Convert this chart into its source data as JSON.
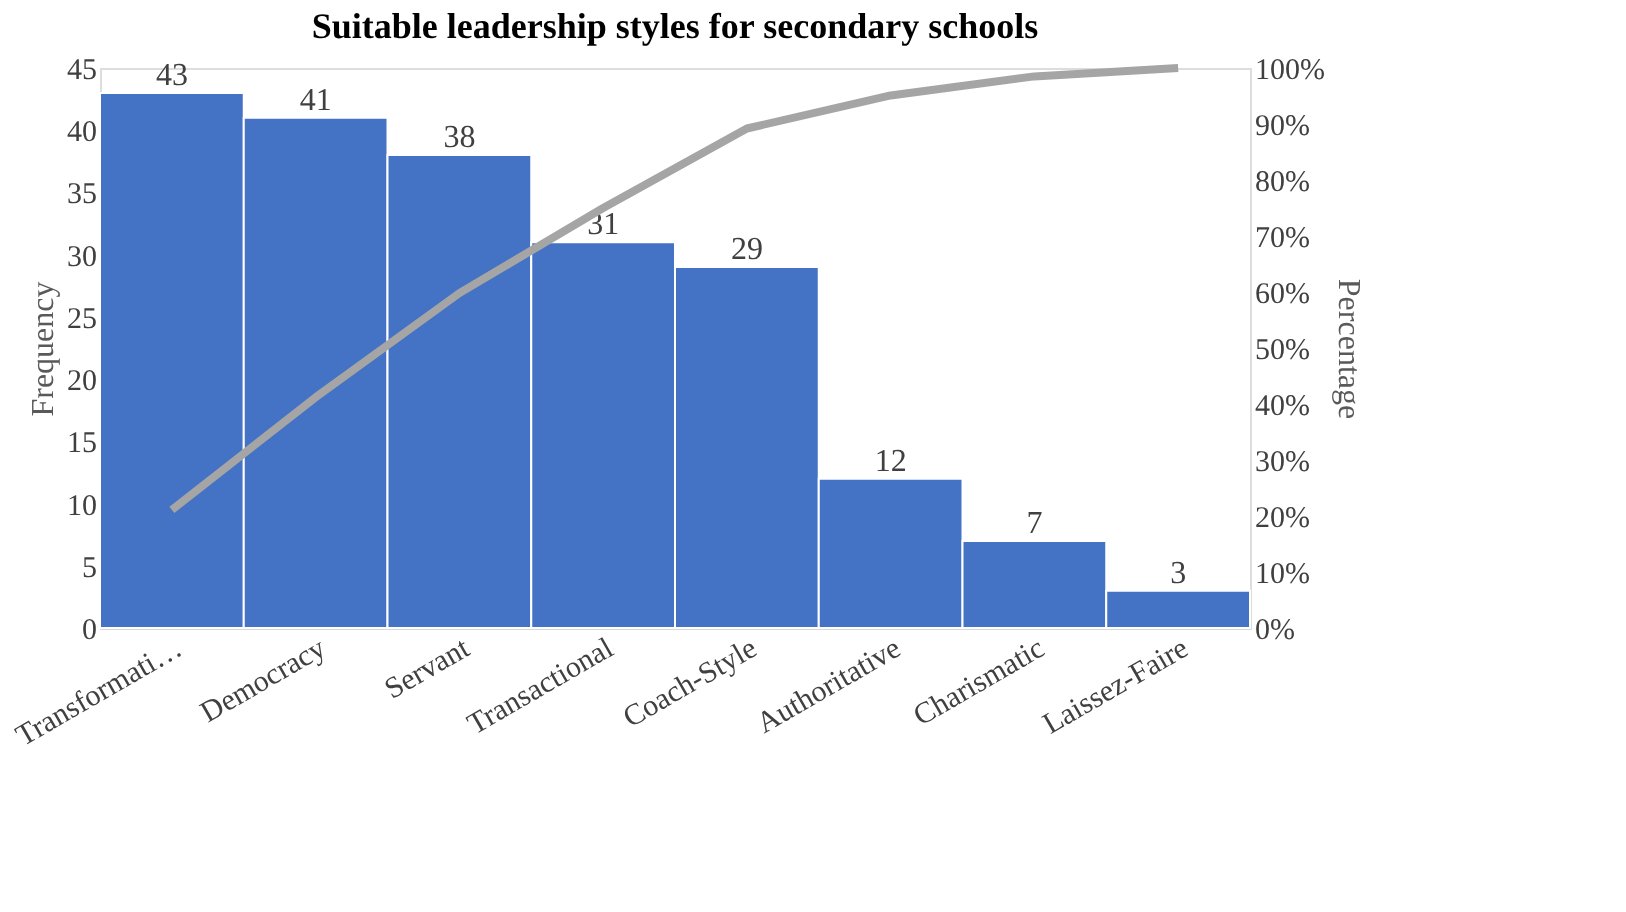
{
  "chart_data": {
    "type": "bar",
    "title": "Suitable leadership styles for secondary schools",
    "categories": [
      "Transformati…",
      "Democracy",
      "Servant",
      "Transactional",
      "Coach-Style",
      "Authoritative",
      "Charismatic",
      "Laissez-Faire"
    ],
    "series": [
      {
        "color": "#4472c4",
        "values": [
          43,
          41,
          38,
          31,
          29,
          12,
          7,
          3
        ],
        "data_labels": true
      },
      {
        "type": "line",
        "axis": "y2",
        "color": "#a5a5a5",
        "values": [
          21.1,
          41.2,
          59.8,
          75.0,
          89.2,
          95.1,
          98.5,
          100
        ]
      }
    ],
    "ylabel": "Frequency",
    "y2label": "Percentage",
    "ylim": [
      0,
      45
    ],
    "yticks": [
      0,
      5,
      10,
      15,
      20,
      25,
      30,
      35,
      40,
      45
    ],
    "y2lim": [
      0,
      100
    ],
    "y2ticks": [
      {
        "value": 0,
        "label": "0%"
      },
      {
        "value": 10,
        "label": "10%"
      },
      {
        "value": 20,
        "label": "20%"
      },
      {
        "value": 30,
        "label": "30%"
      },
      {
        "value": 40,
        "label": "40%"
      },
      {
        "value": 50,
        "label": "50%"
      },
      {
        "value": 60,
        "label": "60%"
      },
      {
        "value": 70,
        "label": "70%"
      },
      {
        "value": 80,
        "label": "80%"
      },
      {
        "value": 90,
        "label": "90%"
      },
      {
        "value": 100,
        "label": "100%"
      }
    ],
    "grid": false,
    "marker": "none",
    "line_style": "solid"
  }
}
